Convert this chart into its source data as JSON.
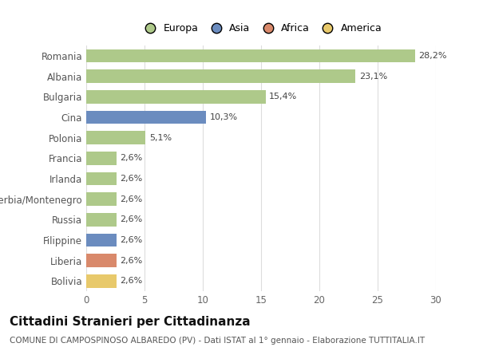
{
  "categories": [
    "Romania",
    "Albania",
    "Bulgaria",
    "Cina",
    "Polonia",
    "Francia",
    "Irlanda",
    "Serbia/Montenegro",
    "Russia",
    "Filippine",
    "Liberia",
    "Bolivia"
  ],
  "values": [
    28.2,
    23.1,
    15.4,
    10.3,
    5.1,
    2.6,
    2.6,
    2.6,
    2.6,
    2.6,
    2.6,
    2.6
  ],
  "labels": [
    "28,2%",
    "23,1%",
    "15,4%",
    "10,3%",
    "5,1%",
    "2,6%",
    "2,6%",
    "2,6%",
    "2,6%",
    "2,6%",
    "2,6%",
    "2,6%"
  ],
  "bar_colors": [
    "#aec98a",
    "#aec98a",
    "#aec98a",
    "#6b8cbf",
    "#aec98a",
    "#aec98a",
    "#aec98a",
    "#aec98a",
    "#aec98a",
    "#6b8cbf",
    "#d9896b",
    "#e8c96b"
  ],
  "legend_labels": [
    "Europa",
    "Asia",
    "Africa",
    "America"
  ],
  "legend_colors": [
    "#aec98a",
    "#6b8cbf",
    "#d9896b",
    "#e8c96b"
  ],
  "title": "Cittadini Stranieri per Cittadinanza",
  "subtitle": "COMUNE DI CAMPOSPINOSO ALBAREDO (PV) - Dati ISTAT al 1° gennaio - Elaborazione TUTTITALIA.IT",
  "xlim": [
    0,
    30
  ],
  "xticks": [
    0,
    5,
    10,
    15,
    20,
    25,
    30
  ],
  "background_color": "#ffffff",
  "grid_color": "#dddddd",
  "title_fontsize": 11,
  "subtitle_fontsize": 7.5,
  "label_fontsize": 8,
  "tick_fontsize": 8.5,
  "legend_fontsize": 9
}
